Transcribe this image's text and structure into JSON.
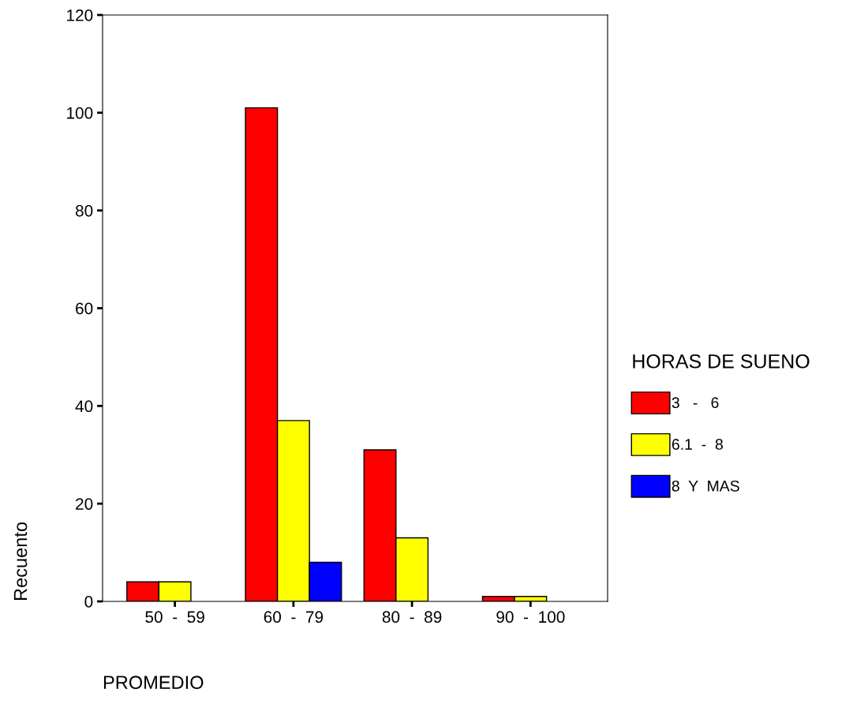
{
  "chart_data": {
    "type": "bar",
    "xlabel": "PROMEDIO",
    "ylabel": "Recuento",
    "legend_title": "HORAS DE SUENO",
    "categories": [
      "50  -  59",
      "60  -  79",
      "80  -  89",
      "90  -  100"
    ],
    "series": [
      {
        "name": "3   -   6",
        "color": "#ff0000",
        "values": [
          4,
          101,
          31,
          1
        ]
      },
      {
        "name": "6.1  -  8",
        "color": "#ffff00",
        "values": [
          4,
          37,
          13,
          1
        ]
      },
      {
        "name": "8  Y  MAS",
        "color": "#0000ff",
        "values": [
          null,
          8,
          null,
          null
        ]
      }
    ],
    "ylim": [
      0,
      120
    ],
    "yticks": [
      0,
      20,
      40,
      60,
      80,
      100,
      120
    ],
    "grid": false,
    "legend": "right"
  }
}
